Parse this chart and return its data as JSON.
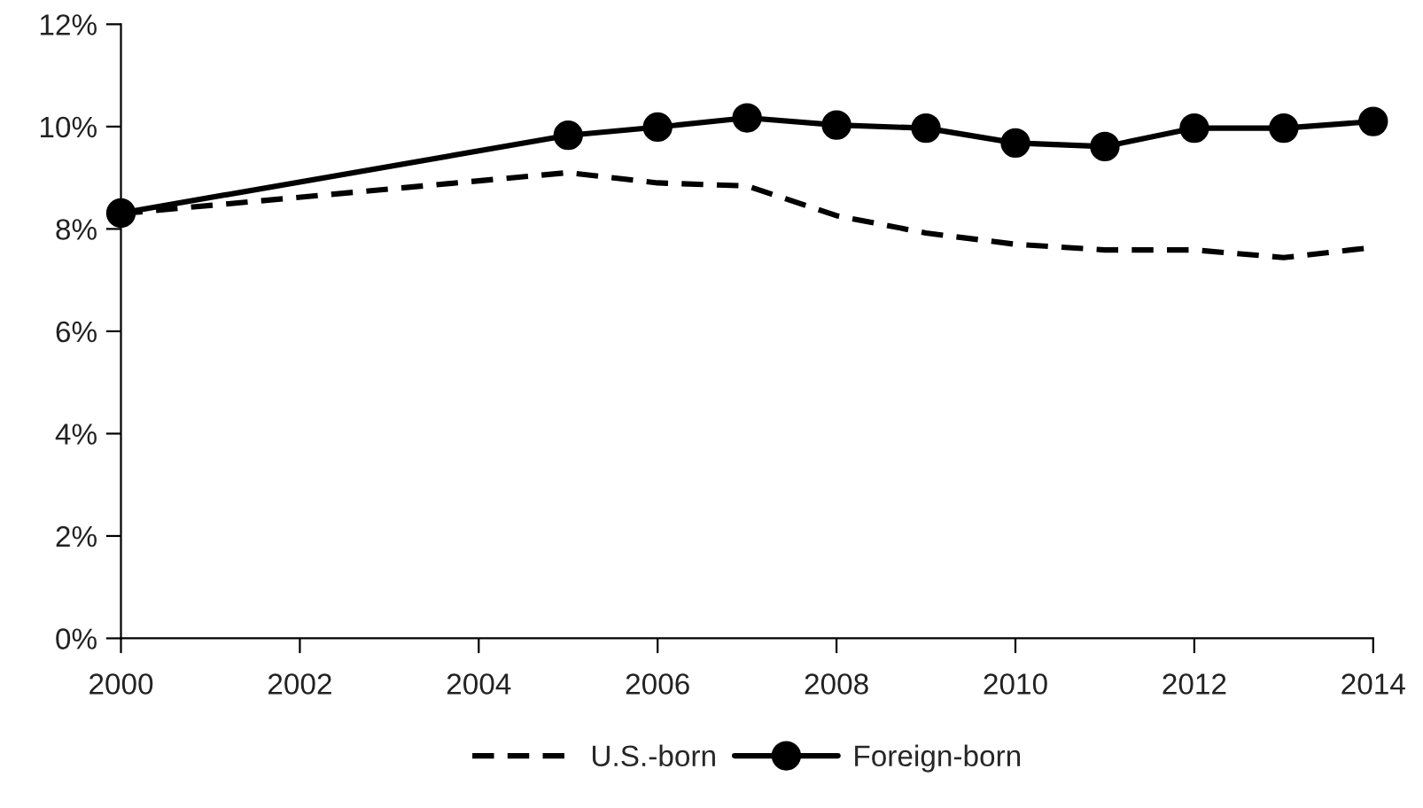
{
  "chart_data": {
    "type": "line",
    "x": [
      2000,
      2005,
      2006,
      2007,
      2008,
      2009,
      2010,
      2011,
      2012,
      2013,
      2014
    ],
    "series": [
      {
        "name": "U.S.-born",
        "color": "#000000",
        "line_style": "dashed",
        "marker": "none",
        "values": [
          8.3,
          9.1,
          8.9,
          8.84,
          8.26,
          7.92,
          7.7,
          7.59,
          7.59,
          7.44,
          7.64
        ]
      },
      {
        "name": "Foreign-born",
        "color": "#000000",
        "line_style": "solid",
        "marker": "circle",
        "values": [
          8.31,
          9.83,
          9.99,
          10.17,
          10.03,
          9.97,
          9.68,
          9.61,
          9.97,
          9.97,
          10.1
        ]
      }
    ],
    "xlim": [
      2000,
      2014
    ],
    "xticks": [
      2000,
      2002,
      2004,
      2006,
      2008,
      2010,
      2012,
      2014
    ],
    "ylim": [
      0,
      12
    ],
    "yticks": [
      {
        "value": 0,
        "label": "0%"
      },
      {
        "value": 2,
        "label": "2%"
      },
      {
        "value": 4,
        "label": "4%"
      },
      {
        "value": 6,
        "label": "6%"
      },
      {
        "value": 8,
        "label": "8%"
      },
      {
        "value": 10,
        "label": "10%"
      },
      {
        "value": 12,
        "label": "12%"
      }
    ],
    "grid": false,
    "legend": "bottom"
  }
}
